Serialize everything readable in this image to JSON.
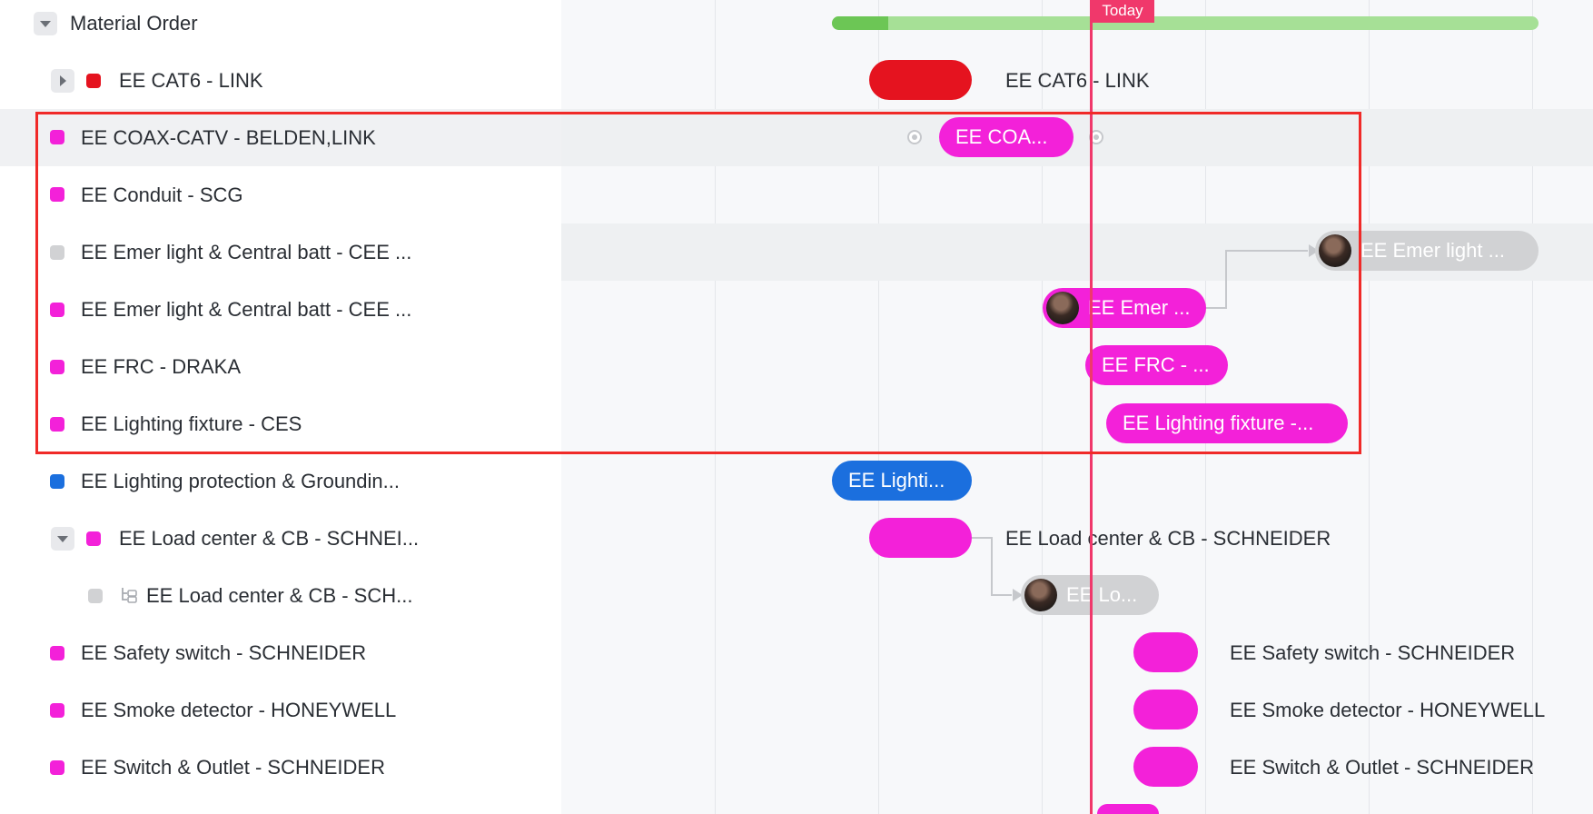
{
  "group": {
    "title": "Material Order",
    "progress": 0.08
  },
  "today_label": "Today",
  "rows": [
    {
      "label": "EE CAT6 - LINK",
      "color": "#e5131f",
      "bar_label": "",
      "outside_label": "EE CAT6 - LINK"
    },
    {
      "label": "EE COAX-CATV - BELDEN,LINK",
      "color": "#f321d9",
      "bar_label": "EE COA..."
    },
    {
      "label": "EE Conduit - SCG",
      "color": "#f321d9"
    },
    {
      "label": "EE Emer light & Central batt - CEE ...",
      "color": "#d1d2d4",
      "bar_label": "EE Emer light ..."
    },
    {
      "label": "EE Emer light & Central batt - CEE ...",
      "color": "#f321d9",
      "bar_label": "EE Emer ..."
    },
    {
      "label": "EE FRC - DRAKA",
      "color": "#f321d9",
      "bar_label": "EE FRC - ..."
    },
    {
      "label": "EE Lighting fixture - CES",
      "color": "#f321d9",
      "bar_label": "EE Lighting fixture -..."
    },
    {
      "label": "EE Lighting protection & Groundin...",
      "color": "#1b6fde",
      "bar_label": "EE Lighti..."
    },
    {
      "label": "EE Load center & CB - SCHNEI...",
      "color": "#f321d9",
      "bar_label": "",
      "outside_label": "EE Load center & CB - SCHNEIDER"
    },
    {
      "label": "EE Load center & CB - SCH...",
      "color": "#d1d2d4",
      "bar_label": "EE Lo..."
    },
    {
      "label": "EE Safety switch - SCHNEIDER",
      "color": "#f321d9",
      "bar_label": "",
      "outside_label": "EE Safety switch - SCHNEIDER"
    },
    {
      "label": "EE Smoke detector - HONEYWELL",
      "color": "#f321d9",
      "bar_label": "",
      "outside_label": "EE Smoke detector - HONEYWELL"
    },
    {
      "label": "EE Switch & Outlet - SCHNEIDER",
      "color": "#f321d9",
      "bar_label": "",
      "outside_label": "EE Switch & Outlet - SCHNEIDER"
    }
  ],
  "colors": {
    "today": "#f0386b",
    "selection": "#f02a28",
    "progress_done": "#6cc655",
    "progress_rest": "#a6e096",
    "connector": "#c6c8cc"
  }
}
